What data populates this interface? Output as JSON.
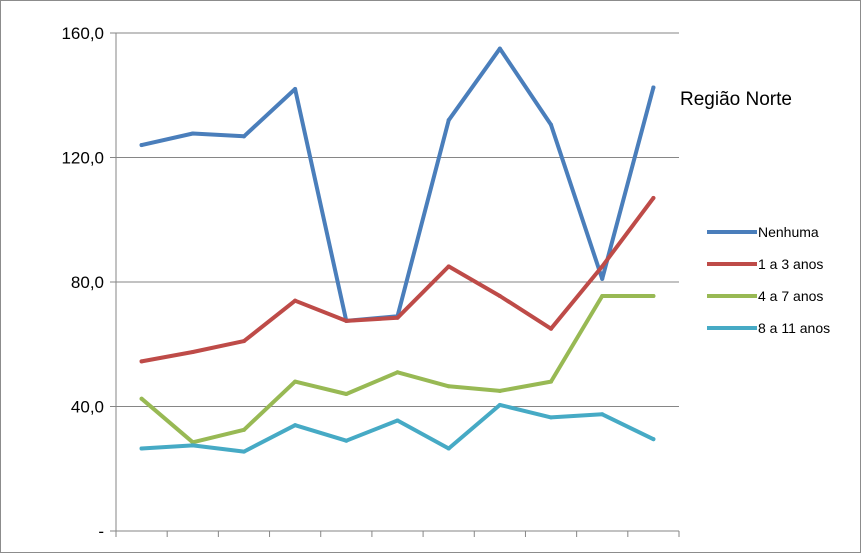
{
  "chart_data": {
    "type": "line",
    "title": "",
    "annotation": "Região Norte",
    "xlabel": "",
    "ylabel": "",
    "ylim": [
      0,
      160
    ],
    "y_ticks": [
      0,
      40,
      80,
      120,
      160
    ],
    "y_tick_labels": [
      "-",
      "40,0",
      "80,0",
      "120,0",
      "160,0"
    ],
    "x": [
      1,
      2,
      3,
      4,
      5,
      6,
      7,
      8,
      9,
      10,
      11
    ],
    "grid": "horizontal",
    "legend_position": "right",
    "series": [
      {
        "name": "Nenhuma",
        "color": "#4a7ebb",
        "values": [
          124,
          127.7,
          126.8,
          142,
          67.5,
          69,
          132,
          155,
          130.5,
          81,
          142.5
        ]
      },
      {
        "name": "1 a 3 anos",
        "color": "#be4b48",
        "values": [
          54.5,
          57.5,
          61,
          74,
          67.5,
          68.5,
          85,
          75.5,
          65,
          85,
          107
        ]
      },
      {
        "name": "4 a 7 anos",
        "color": "#98b954",
        "values": [
          42.5,
          28.5,
          32.5,
          48,
          44,
          51,
          46.5,
          45,
          48,
          75.5,
          75.5
        ]
      },
      {
        "name": "8 a 11 anos",
        "color": "#46aac5",
        "values": [
          26.5,
          27.5,
          25.5,
          34,
          29,
          35.5,
          26.5,
          40.5,
          36.5,
          37.5,
          29.5
        ]
      }
    ]
  }
}
